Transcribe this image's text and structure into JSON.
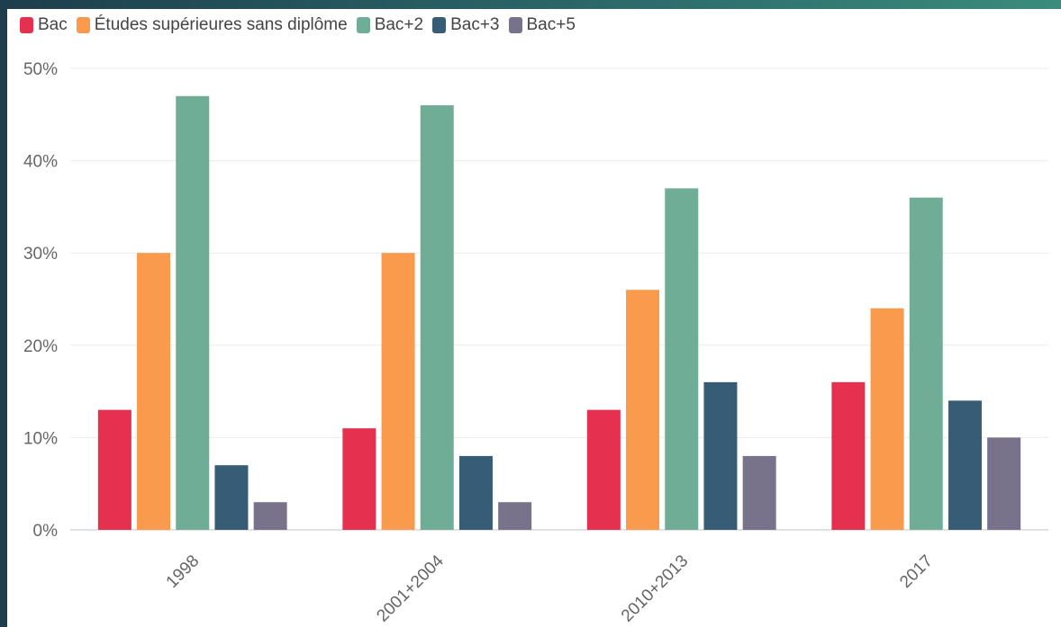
{
  "chart_data": {
    "type": "bar",
    "categories": [
      "1998",
      "2001+2004",
      "2010+2013",
      "2017"
    ],
    "series": [
      {
        "name": "Bac",
        "color": "#e5304f",
        "values": [
          13,
          11,
          13,
          16
        ]
      },
      {
        "name": "Études supérieures sans diplôme",
        "color": "#f99a4c",
        "values": [
          30,
          30,
          26,
          24
        ]
      },
      {
        "name": "Bac+2",
        "color": "#6fad97",
        "values": [
          47,
          46,
          37,
          36
        ]
      },
      {
        "name": "Bac+3",
        "color": "#365d75",
        "values": [
          7,
          8,
          16,
          14
        ]
      },
      {
        "name": "Bac+5",
        "color": "#78738a",
        "values": [
          3,
          3,
          8,
          10
        ]
      }
    ],
    "ylim": [
      0,
      50
    ],
    "yticks": [
      "0%",
      "10%",
      "20%",
      "30%",
      "40%",
      "50%"
    ],
    "grid": true,
    "legend_position": "top-left"
  }
}
